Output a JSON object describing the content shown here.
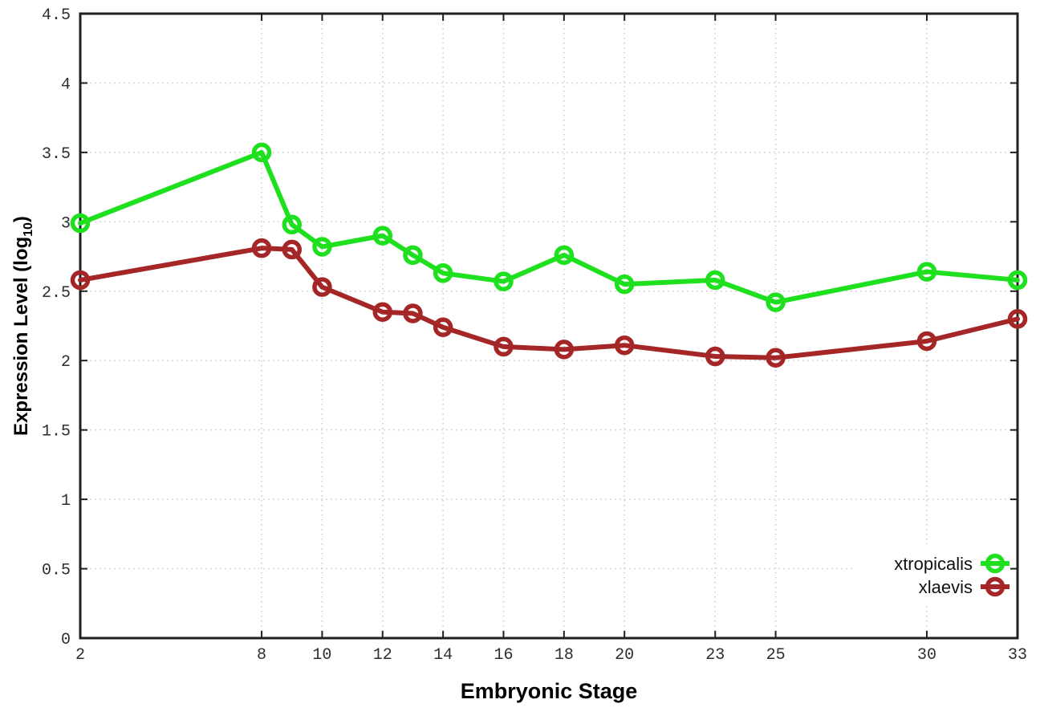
{
  "figure": {
    "background": "#ffffff"
  },
  "chart_data": {
    "type": "line",
    "title": "",
    "xlabel": "Embryonic Stage",
    "ylabel": "Expression Level (log10)",
    "ylabel_rich": {
      "main": "Expression Level (log",
      "subscript": "10",
      "suffix": ")"
    },
    "x": [
      2,
      8,
      9,
      10,
      12,
      13,
      14,
      16,
      18,
      20,
      23,
      25,
      30,
      33
    ],
    "series": [
      {
        "name": "xtropicalis",
        "color": "#1ee01e",
        "marker": "open-circle",
        "values": [
          2.99,
          3.5,
          2.98,
          2.82,
          2.9,
          2.76,
          2.63,
          2.57,
          2.76,
          2.55,
          2.58,
          2.42,
          2.64,
          2.58
        ]
      },
      {
        "name": "xlaevis",
        "color": "#a52626",
        "marker": "open-circle",
        "values": [
          2.58,
          2.81,
          2.8,
          2.53,
          2.35,
          2.34,
          2.24,
          2.1,
          2.08,
          2.11,
          2.03,
          2.02,
          2.14,
          2.3
        ]
      }
    ],
    "xlim": [
      2,
      33
    ],
    "ylim": [
      0,
      4.5
    ],
    "xtick_values": [
      2,
      8,
      10,
      12,
      14,
      16,
      18,
      20,
      23,
      25,
      30,
      33
    ],
    "xtick_labels": [
      "2",
      "8",
      "10",
      "12",
      "14",
      "16",
      "18",
      "20",
      "23",
      "25",
      "30",
      "33"
    ],
    "ytick_values": [
      0,
      0.5,
      1,
      1.5,
      2,
      2.5,
      3,
      3.5,
      4,
      4.5
    ],
    "ytick_labels": [
      "0",
      "0.5",
      "1",
      "1.5",
      "2",
      "2.5",
      "3",
      "3.5",
      "4",
      "4.5"
    ],
    "grid": "dotted",
    "legend": {
      "position": "bottom-right",
      "entries": [
        "xtropicalis",
        "xlaevis"
      ]
    }
  },
  "colors": {
    "grid": "#c8c8c8",
    "border": "#202020",
    "tick_text": "#2e2e2e",
    "title_text": "#000000",
    "legend_text": "#111111"
  }
}
